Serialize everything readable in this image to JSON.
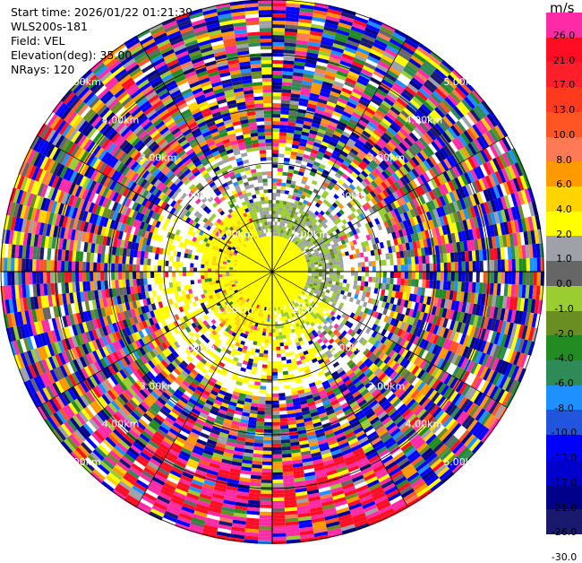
{
  "header": {
    "start_time": "Start time: 2026/01/22 01:21:39",
    "station": "WLS200s-181",
    "field": "Field: VEL",
    "elevation": "Elevation(deg): 35.00",
    "nrays": "NRays: 120"
  },
  "colorbar": {
    "unit": "m/s",
    "labels": [
      "26.0",
      "21.0",
      "17.0",
      "13.0",
      "10.0",
      "8.0",
      "6.0",
      "4.0",
      "2.0",
      "1.0",
      "0.0",
      "-1.0",
      "-2.0",
      "-4.0",
      "-6.0",
      "-8.0",
      "-10.0",
      "-13.0",
      "-17.0",
      "-21.0",
      "-26.0",
      "-30.0"
    ],
    "colors": [
      "#ff2aa6",
      "#ff0d22",
      "#ff1f2a",
      "#ff3a1e",
      "#ff5522",
      "#ff7a55",
      "#ff9900",
      "#ffd400",
      "#ffff00",
      "#9ea2a8",
      "#666666",
      "#9acd32",
      "#6b8e23",
      "#228b22",
      "#2e8b57",
      "#1e90ff",
      "#2255dd",
      "#0000ff",
      "#0000cc",
      "#00008b",
      "#191970"
    ]
  },
  "range_rings": {
    "unit": "km",
    "labels": [
      "1.00km",
      "2.00km",
      "3.00km",
      "4.00km",
      "5.00km"
    ]
  }
}
